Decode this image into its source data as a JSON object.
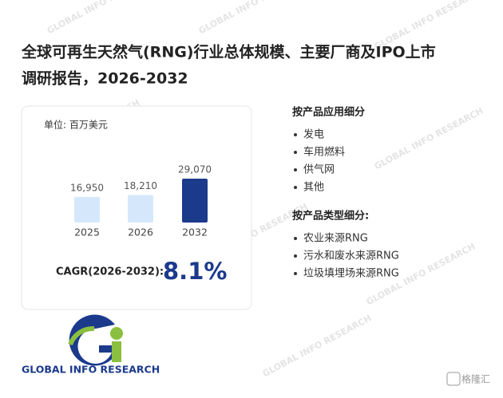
{
  "title_lines": [
    "全球可再生天然气(RNG)行业总体规模、主要厂商及IPO上市",
    "调研报告，2026-2032"
  ],
  "chart_data": {
    "type": "bar",
    "unit": "单位: 百万美元",
    "categories": [
      "2025",
      "2026",
      "2032"
    ],
    "values": [
      16950,
      18210,
      29070
    ],
    "value_labels": [
      "16,950",
      "18,210",
      "29,070"
    ],
    "colors": [
      "#d5e8fb",
      "#d5e8fb",
      "#1b3a8c"
    ]
  },
  "cagr": {
    "label": "CAGR(2026-2032):",
    "value": "8.1%"
  },
  "segments": [
    {
      "heading": "按产品应用细分",
      "items": [
        "发电",
        "车用燃料",
        "供气网",
        "其他"
      ]
    },
    {
      "heading": "按产品类型细分:",
      "items": [
        "农业来源RNG",
        "污水和废水来源RNG",
        "垃圾填埋场来源RNG"
      ]
    }
  ],
  "logo": "GLOBAL INFO RESEARCH",
  "watermark": "GLOBAL INFO RESEARCH",
  "badge": "格隆汇"
}
